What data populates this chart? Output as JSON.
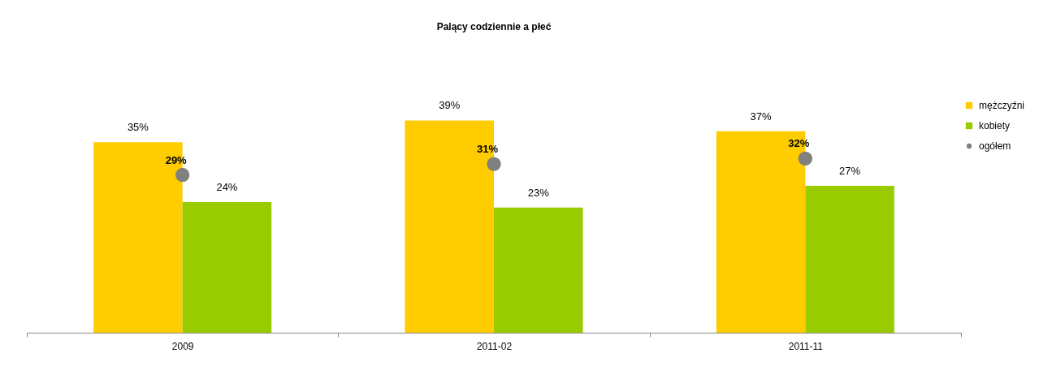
{
  "chart_data": {
    "type": "bar",
    "title": "Palący codziennie a płeć",
    "categories": [
      "2009",
      "2011-02",
      "2011-11"
    ],
    "series": [
      {
        "name": "mężczyźni",
        "color": "#ffcc00",
        "values": [
          35,
          39,
          37
        ],
        "value_labels": [
          "35%",
          "39%",
          "37%"
        ]
      },
      {
        "name": "kobiety",
        "color": "#99cc00",
        "values": [
          24,
          23,
          27
        ],
        "value_labels": [
          "24%",
          "23%",
          "27%"
        ]
      },
      {
        "name": "ogółem",
        "type": "scatter",
        "marker": "circle",
        "color": "#808080",
        "values": [
          29,
          31,
          32
        ],
        "value_labels": [
          "29%",
          "31%",
          "32%"
        ]
      }
    ],
    "legend": "right",
    "grid": false
  }
}
